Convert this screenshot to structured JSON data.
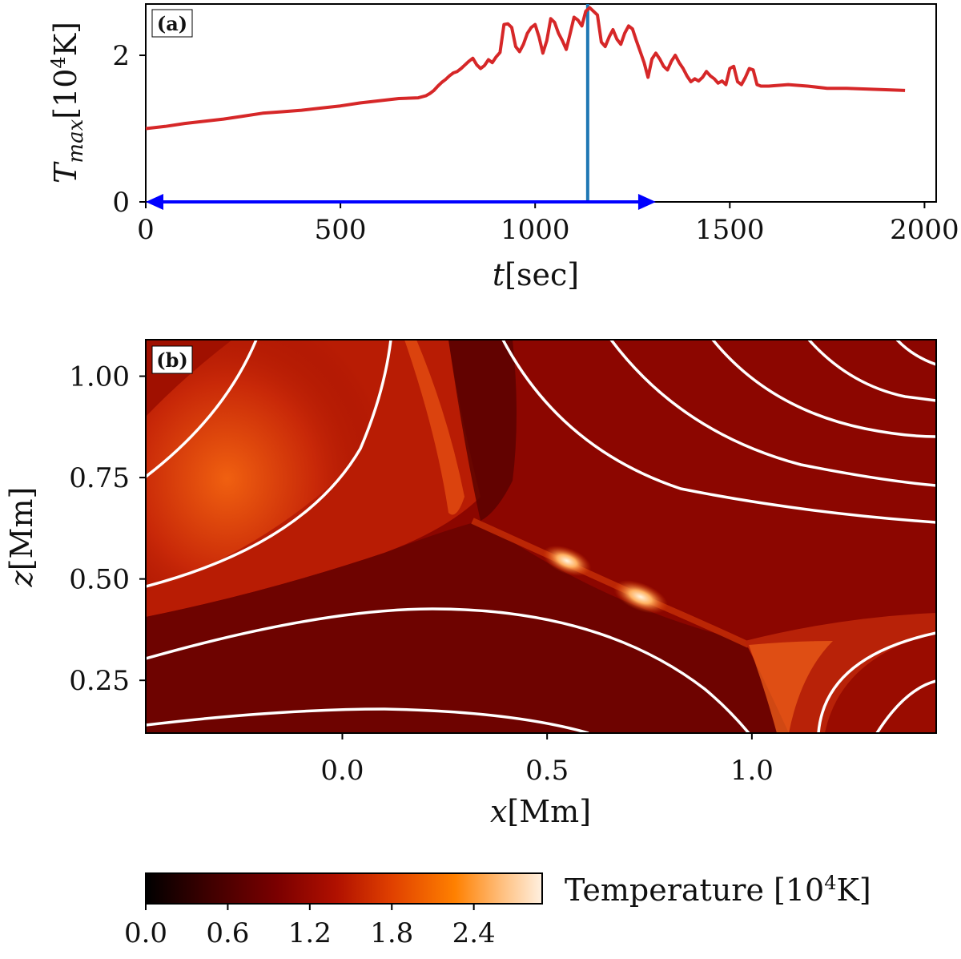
{
  "chart_data": [
    {
      "panel": "(a)",
      "type": "line",
      "xlabel_var": "t",
      "xlabel_unit": "[sec]",
      "ylabel_var": "T",
      "ylabel_sub": "max",
      "ylabel_unit_pre": "[10",
      "ylabel_unit_sup": "4",
      "ylabel_unit_post": "K]",
      "xlim": [
        0,
        2030
      ],
      "ylim": [
        0,
        2.7
      ],
      "xticks": [
        0,
        500,
        1000,
        1500,
        2000
      ],
      "xtick_labels": [
        "0",
        "500",
        "1000",
        "1500",
        "2000"
      ],
      "yticks": [
        0,
        2
      ],
      "ytick_labels": [
        "0",
        "2"
      ],
      "series": [
        {
          "color": "#d62728",
          "x": [
            0,
            50,
            100,
            150,
            200,
            250,
            300,
            350,
            400,
            450,
            500,
            550,
            600,
            650,
            700,
            720,
            730,
            740,
            750,
            760,
            770,
            780,
            790,
            800,
            810,
            820,
            830,
            840,
            850,
            860,
            870,
            880,
            890,
            900,
            910,
            920,
            930,
            940,
            950,
            960,
            970,
            980,
            990,
            1000,
            1010,
            1020,
            1030,
            1040,
            1050,
            1060,
            1070,
            1080,
            1090,
            1100,
            1110,
            1120,
            1130,
            1140,
            1150,
            1160,
            1170,
            1180,
            1190,
            1200,
            1210,
            1220,
            1230,
            1240,
            1250,
            1260,
            1270,
            1280,
            1290,
            1300,
            1310,
            1320,
            1330,
            1340,
            1350,
            1360,
            1370,
            1380,
            1390,
            1400,
            1410,
            1420,
            1430,
            1440,
            1450,
            1460,
            1470,
            1480,
            1490,
            1500,
            1510,
            1520,
            1530,
            1540,
            1550,
            1560,
            1570,
            1580,
            1600,
            1650,
            1700,
            1750,
            1800,
            1850,
            1900,
            1950
          ],
          "values": [
            1.0,
            1.03,
            1.07,
            1.1,
            1.13,
            1.17,
            1.21,
            1.23,
            1.25,
            1.28,
            1.31,
            1.35,
            1.38,
            1.41,
            1.42,
            1.45,
            1.48,
            1.52,
            1.58,
            1.63,
            1.67,
            1.72,
            1.76,
            1.78,
            1.82,
            1.87,
            1.92,
            1.96,
            1.87,
            1.82,
            1.86,
            1.94,
            1.9,
            1.98,
            2.04,
            2.42,
            2.43,
            2.38,
            2.12,
            2.05,
            2.15,
            2.3,
            2.38,
            2.42,
            2.25,
            2.03,
            2.2,
            2.5,
            2.45,
            2.3,
            2.2,
            2.08,
            2.3,
            2.52,
            2.48,
            2.4,
            2.6,
            2.65,
            2.6,
            2.55,
            2.18,
            2.12,
            2.25,
            2.35,
            2.22,
            2.15,
            2.3,
            2.4,
            2.36,
            2.2,
            2.05,
            1.9,
            1.7,
            1.95,
            2.03,
            1.95,
            1.85,
            1.8,
            1.92,
            2.0,
            1.9,
            1.82,
            1.72,
            1.64,
            1.68,
            1.65,
            1.7,
            1.78,
            1.72,
            1.68,
            1.62,
            1.65,
            1.6,
            1.82,
            1.85,
            1.64,
            1.6,
            1.7,
            1.82,
            1.8,
            1.6,
            1.58,
            1.58,
            1.6,
            1.58,
            1.55,
            1.55,
            1.54,
            1.53,
            1.52
          ]
        }
      ],
      "vline_x": 1135,
      "vline_color": "#1f77b4",
      "arrow": {
        "x_start": 0,
        "x_end": 1310,
        "y": 0,
        "color": "#0000ff"
      }
    },
    {
      "panel": "(b)",
      "type": "heatmap",
      "xlabel_var": "x",
      "xlabel_unit": "[Mm]",
      "ylabel_var": "z",
      "ylabel_unit": "[Mm]",
      "xlim": [
        -0.48,
        1.45
      ],
      "ylim": [
        0.12,
        1.09
      ],
      "xticks": [
        0.0,
        0.5,
        1.0
      ],
      "xtick_labels": [
        "0.0",
        "0.5",
        "1.0"
      ],
      "yticks": [
        0.25,
        0.5,
        0.75,
        1.0
      ],
      "ytick_labels": [
        "0.25",
        "0.50",
        "0.75",
        "1.00"
      ],
      "field_lines_color": "#ffffff",
      "colorbar": {
        "label_pre": "Temperature [10",
        "label_sup": "4",
        "label_post": "K]",
        "range": [
          0.0,
          2.9
        ],
        "ticks": [
          0.0,
          0.6,
          1.2,
          1.8,
          2.4
        ],
        "tick_labels": [
          "0.0",
          "0.6",
          "1.2",
          "1.8",
          "2.4"
        ],
        "colormap": [
          "#000000",
          "#3b0000",
          "#7a0000",
          "#b01000",
          "#e04000",
          "#ff8000",
          "#ffc080",
          "#fff0e0"
        ]
      }
    }
  ]
}
